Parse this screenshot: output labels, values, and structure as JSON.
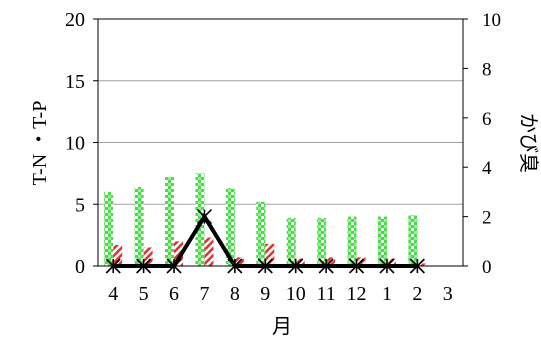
{
  "chart_data": {
    "type": "bar",
    "categories": [
      "4",
      "5",
      "6",
      "7",
      "8",
      "9",
      "10",
      "11",
      "12",
      "1",
      "2",
      "3"
    ],
    "xlabel": "月",
    "ylabel_left": "T-N ・T-P",
    "ylabel_right": "かび臭",
    "ylim_left": [
      0,
      20
    ],
    "yticks_left": [
      0,
      5,
      10,
      15,
      20
    ],
    "ylim_right": [
      0,
      10
    ],
    "yticks_right": [
      0,
      2,
      4,
      6,
      8,
      10
    ],
    "grid": "horizontal",
    "series": [
      {
        "kind": "bar",
        "axis": "left",
        "color": "#4cd94c",
        "pattern": "green-striped",
        "values": [
          6.0,
          6.4,
          7.2,
          7.5,
          6.3,
          5.2,
          3.9,
          3.9,
          4.0,
          4.0,
          4.1,
          null
        ]
      },
      {
        "kind": "bar",
        "axis": "left",
        "color": "#e03030",
        "pattern": "red-hatched",
        "values": [
          1.7,
          1.5,
          2.0,
          2.3,
          0.7,
          1.8,
          0.6,
          0.7,
          0.7,
          0.6,
          0.2,
          null
        ]
      },
      {
        "kind": "line",
        "axis": "right",
        "color": "#000000",
        "marker": "asterisk",
        "values": [
          0,
          0,
          0,
          2,
          0,
          0,
          0,
          0,
          0,
          0,
          0,
          null
        ]
      }
    ]
  }
}
